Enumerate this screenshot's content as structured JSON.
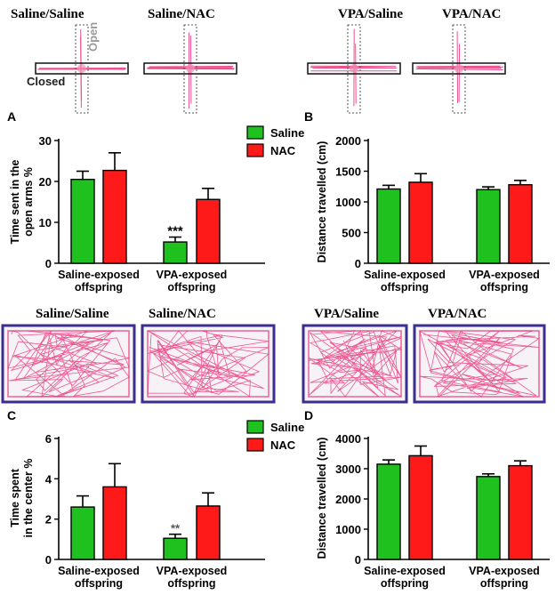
{
  "colors": {
    "saline": "#1ec11e",
    "nac": "#ff1a1a",
    "track": "#e8337a",
    "track_light": "#f08fb6",
    "box_border": "#3a2e8f"
  },
  "maze": {
    "labels": [
      "Saline/Saline",
      "Saline/NAC",
      "VPA/Saline",
      "VPA/NAC"
    ],
    "open_label": "Open",
    "closed_label": "Closed"
  },
  "open_field": {
    "labels": [
      "Saline/Saline",
      "Saline/NAC",
      "VPA/Saline",
      "VPA/NAC"
    ]
  },
  "chart_data": [
    {
      "panel": "A",
      "type": "bar",
      "categories": [
        "Saline-exposed offspring",
        "VPA-exposed offspring"
      ],
      "series": [
        {
          "name": "Saline",
          "values": [
            20.5,
            5.2
          ],
          "errors": [
            2.0,
            1.2
          ]
        },
        {
          "name": "NAC",
          "values": [
            22.7,
            15.6
          ],
          "errors": [
            4.3,
            2.7
          ]
        }
      ],
      "ylabel": "Time sent in the open arms %",
      "ylim": [
        0,
        30
      ],
      "yticks": [
        0,
        10,
        20,
        30
      ],
      "annotations": [
        {
          "category": 1,
          "series": 0,
          "text": "***"
        }
      ],
      "legend": "top-right"
    },
    {
      "panel": "B",
      "type": "bar",
      "categories": [
        "Saline-exposed offspring",
        "VPA-exposed offspring"
      ],
      "series": [
        {
          "name": "Saline",
          "values": [
            1210,
            1200
          ],
          "errors": [
            60,
            45
          ]
        },
        {
          "name": "NAC",
          "values": [
            1320,
            1280
          ],
          "errors": [
            140,
            70
          ]
        }
      ],
      "ylabel": "Distance travelled (cm)",
      "ylim": [
        0,
        2000
      ],
      "yticks": [
        0,
        500,
        1000,
        1500,
        2000
      ]
    },
    {
      "panel": "C",
      "type": "bar",
      "categories": [
        "Saline-exposed offspring",
        "VPA-exposed offspring"
      ],
      "series": [
        {
          "name": "Saline",
          "values": [
            2.6,
            1.05
          ],
          "errors": [
            0.55,
            0.2
          ]
        },
        {
          "name": "NAC",
          "values": [
            3.6,
            2.65
          ],
          "errors": [
            1.15,
            0.65
          ]
        }
      ],
      "ylabel": "Time spent in the center %",
      "ylim": [
        0,
        6
      ],
      "yticks": [
        0,
        2,
        4,
        6
      ],
      "annotations": [
        {
          "category": 1,
          "series": 0,
          "text": "**"
        }
      ],
      "legend": "top-right"
    },
    {
      "panel": "D",
      "type": "bar",
      "categories": [
        "Saline-exposed offspring",
        "VPA-exposed offspring"
      ],
      "series": [
        {
          "name": "Saline",
          "values": [
            3150,
            2740
          ],
          "errors": [
            140,
            90
          ]
        },
        {
          "name": "NAC",
          "values": [
            3430,
            3100
          ],
          "errors": [
            320,
            160
          ]
        }
      ],
      "ylabel": "Distance travelled (cm)",
      "ylim": [
        0,
        4000
      ],
      "yticks": [
        0,
        1000,
        2000,
        3000,
        4000
      ]
    }
  ]
}
